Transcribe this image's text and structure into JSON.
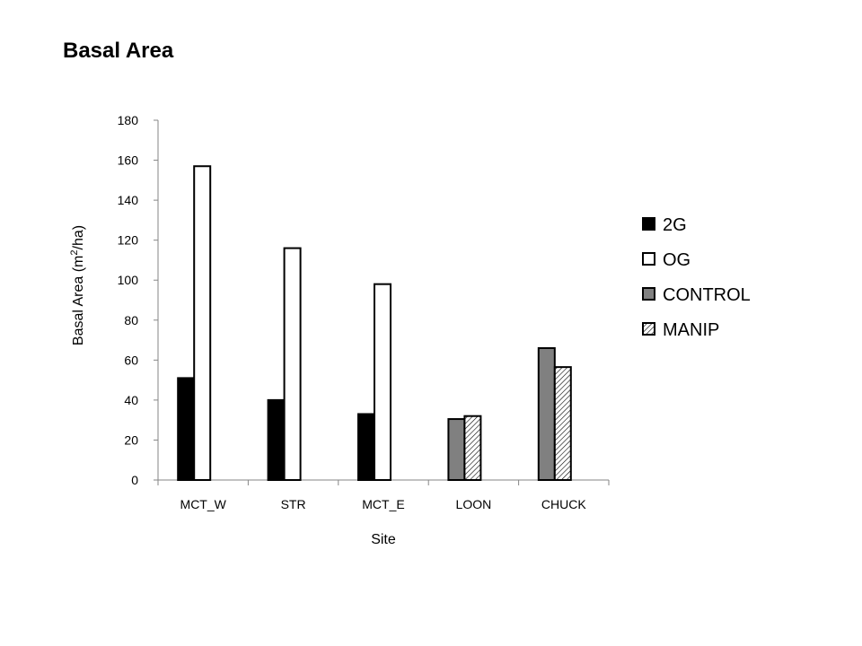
{
  "chart_data": {
    "type": "bar",
    "title": "Basal Area",
    "xlabel": "Site",
    "ylabel_main": "Basal Area (m",
    "ylabel_sup": "2",
    "ylabel_tail": "/ha)",
    "categories": [
      "MCT_W",
      "STR",
      "MCT_E",
      "LOON",
      "CHUCK"
    ],
    "ylim": [
      0,
      180
    ],
    "yticks": [
      "0",
      "20",
      "40",
      "60",
      "80",
      "100",
      "120",
      "140",
      "160",
      "180"
    ],
    "grid": false,
    "legend_position": "right",
    "series": [
      {
        "name": "2G",
        "fill": "solid-black",
        "values": [
          51,
          40,
          33,
          null,
          null
        ]
      },
      {
        "name": "OG",
        "fill": "white",
        "values": [
          157,
          116,
          98,
          null,
          null
        ]
      },
      {
        "name": "CONTROL",
        "fill": "solid-gray",
        "values": [
          null,
          null,
          null,
          30.5,
          66
        ]
      },
      {
        "name": "MANIP",
        "fill": "hatched",
        "values": [
          null,
          null,
          null,
          32,
          56.5
        ]
      }
    ],
    "colors": {
      "2G": "#000000",
      "OG": "#ffffff",
      "CONTROL": "#808080",
      "MANIP": "hatch"
    }
  }
}
